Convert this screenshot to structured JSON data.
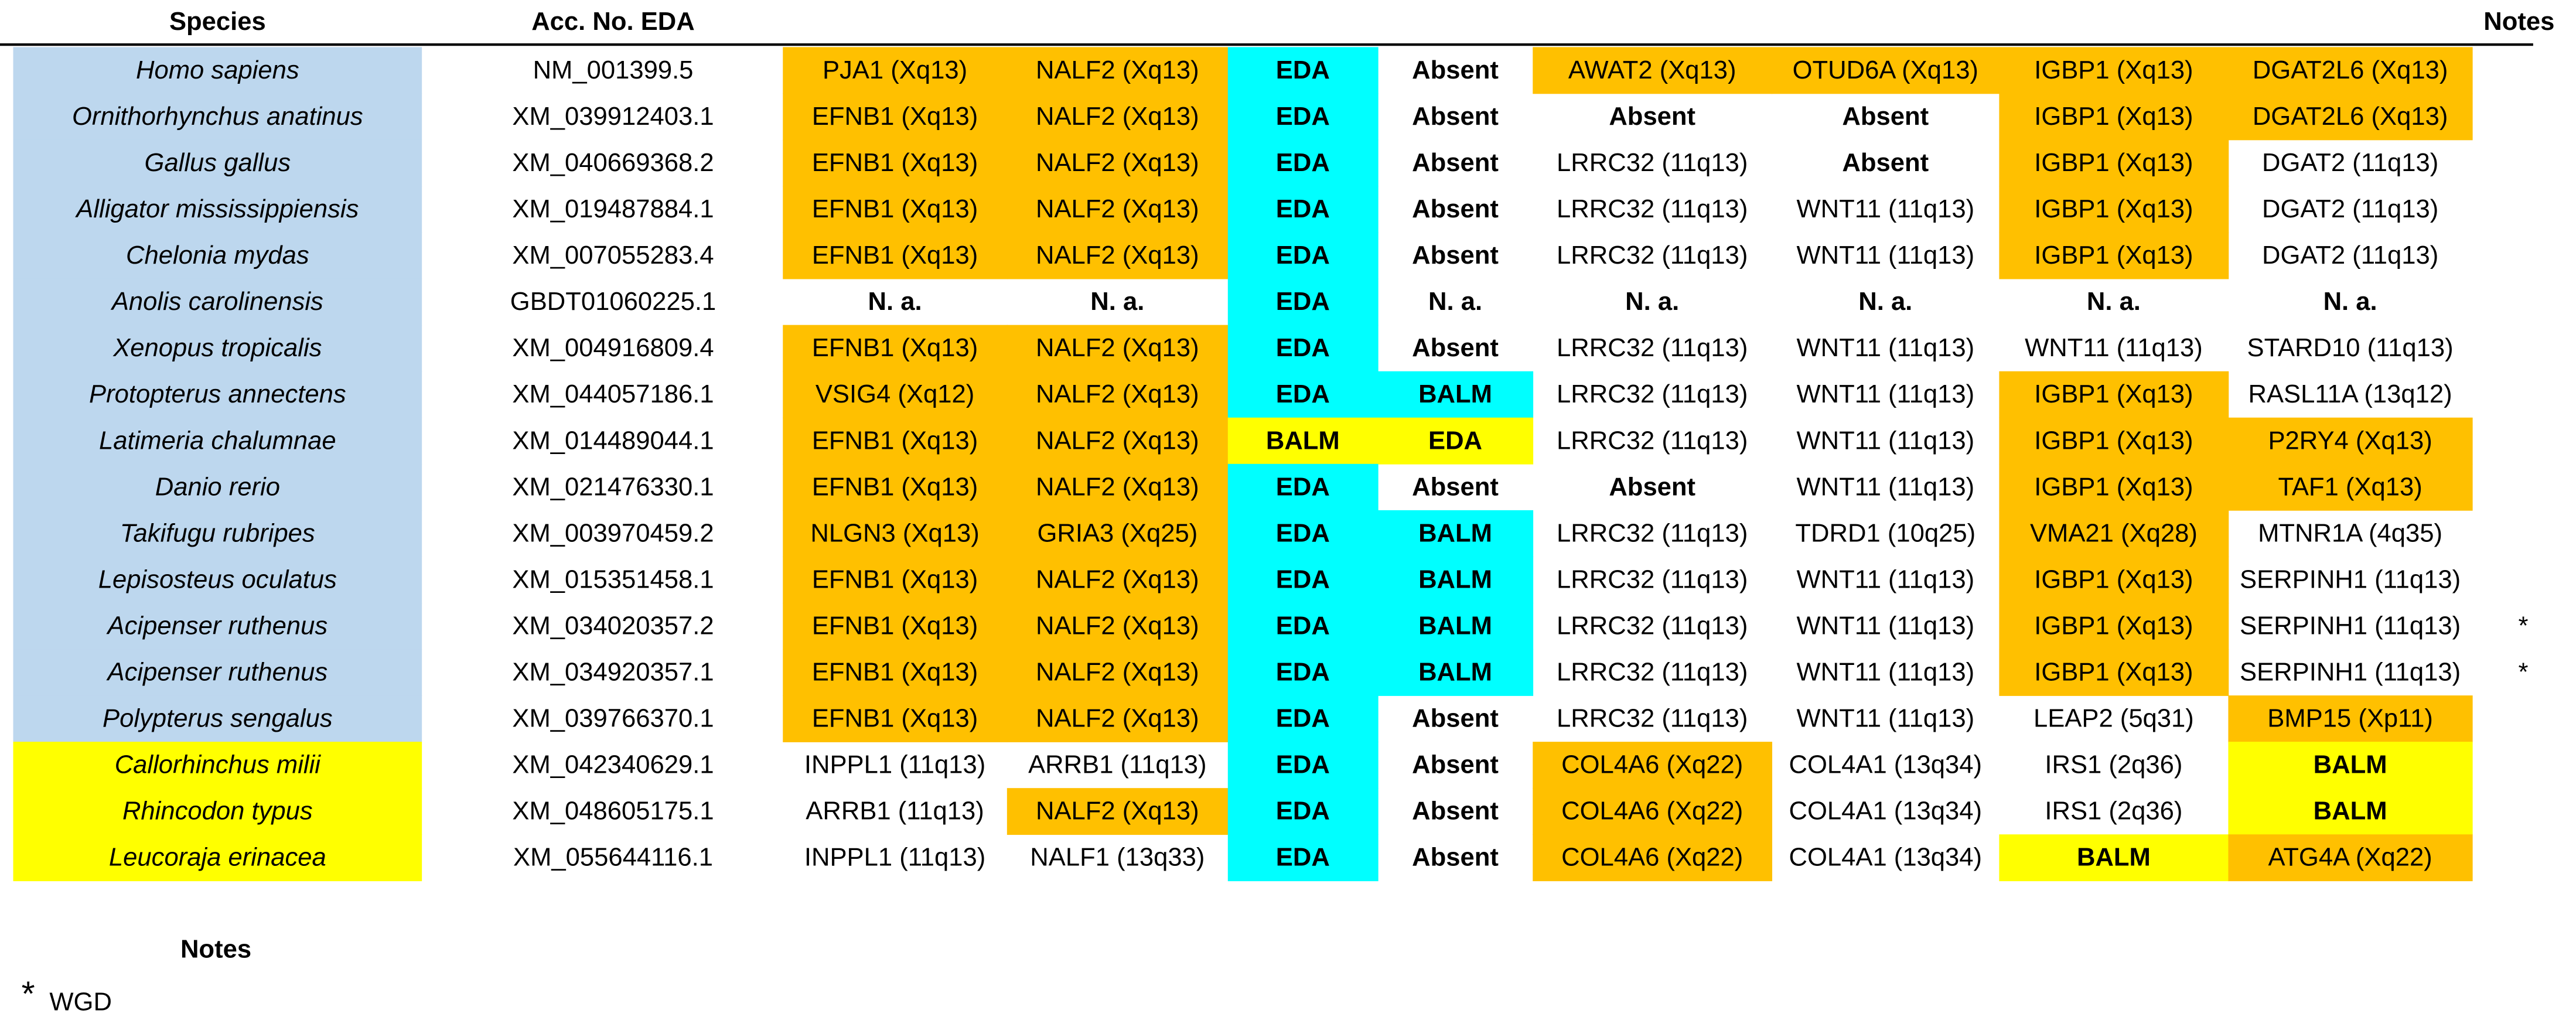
{
  "header": {
    "species": "Species",
    "accession": "Acc. No. EDA",
    "notes": "Notes"
  },
  "table": {
    "rows": [
      {
        "species": "Homo sapiens",
        "accession": "NM_001399.5",
        "group": "blue",
        "cells": [
          "PJA1 (Xq13)",
          "NALF2 (Xq13)",
          "EDA",
          "Absent",
          "AWAT2 (Xq13)",
          "OTUD6A (Xq13)",
          "IGBP1 (Xq13)",
          "DGAT2L6 (Xq13)"
        ],
        "styles": [
          "orange",
          "orange",
          "cyan",
          "red",
          "orange",
          "orange",
          "orange",
          "orange"
        ]
      },
      {
        "species": "Ornithorhynchus anatinus",
        "accession": "XM_039912403.1",
        "group": "blue",
        "cells": [
          "EFNB1 (Xq13)",
          "NALF2 (Xq13)",
          "EDA",
          "Absent",
          "Absent",
          "Absent",
          "IGBP1 (Xq13)",
          "DGAT2L6 (Xq13)"
        ],
        "styles": [
          "orange",
          "orange",
          "cyan",
          "red",
          "red",
          "red",
          "orange",
          "orange"
        ]
      },
      {
        "species": "Gallus gallus",
        "accession": "XM_040669368.2",
        "group": "blue",
        "cells": [
          "EFNB1 (Xq13)",
          "NALF2 (Xq13)",
          "EDA",
          "Absent",
          "LRRC32 (11q13)",
          "Absent",
          "IGBP1 (Xq13)",
          "DGAT2 (11q13)"
        ],
        "styles": [
          "orange",
          "orange",
          "cyan",
          "red",
          "plain",
          "red",
          "orange",
          "plain"
        ]
      },
      {
        "species": "Alligator mississippiensis",
        "accession": "XM_019487884.1",
        "group": "blue",
        "cells": [
          "EFNB1 (Xq13)",
          "NALF2 (Xq13)",
          "EDA",
          "Absent",
          "LRRC32 (11q13)",
          "WNT11 (11q13)",
          "IGBP1 (Xq13)",
          "DGAT2 (11q13)"
        ],
        "styles": [
          "orange",
          "orange",
          "cyan",
          "red",
          "plain",
          "plain",
          "orange",
          "plain"
        ]
      },
      {
        "species": "Chelonia mydas",
        "accession": "XM_007055283.4",
        "group": "blue",
        "cells": [
          "EFNB1 (Xq13)",
          "NALF2 (Xq13)",
          "EDA",
          "Absent",
          "LRRC32 (11q13)",
          "WNT11 (11q13)",
          "IGBP1 (Xq13)",
          "DGAT2 (11q13)"
        ],
        "styles": [
          "orange",
          "orange",
          "cyan",
          "red",
          "plain",
          "plain",
          "orange",
          "plain"
        ]
      },
      {
        "species": "Anolis carolinensis",
        "accession": "GBDT01060225.1",
        "group": "blue",
        "cells": [
          "N. a.",
          "N. a.",
          "EDA",
          "N. a.",
          "N. a.",
          "N. a.",
          "N. a.",
          "N. a."
        ],
        "styles": [
          "bold",
          "bold",
          "cyan",
          "bold",
          "bold",
          "bold",
          "bold",
          "bold"
        ]
      },
      {
        "species": "Xenopus tropicalis",
        "accession": "XM_004916809.4",
        "group": "blue",
        "cells": [
          "EFNB1 (Xq13)",
          "NALF2 (Xq13)",
          "EDA",
          "Absent",
          "LRRC32 (11q13)",
          "WNT11 (11q13)",
          "WNT11 (11q13)",
          "STARD10 (11q13)"
        ],
        "styles": [
          "orange",
          "orange",
          "cyan",
          "red",
          "plain",
          "plain",
          "plain",
          "plain"
        ]
      },
      {
        "species": "Protopterus annectens",
        "accession": "XM_044057186.1",
        "group": "blue",
        "cells": [
          "VSIG4 (Xq12)",
          "NALF2 (Xq13)",
          "EDA",
          "BALM",
          "LRRC32 (11q13)",
          "WNT11 (11q13)",
          "IGBP1 (Xq13)",
          "RASL11A (13q12)"
        ],
        "styles": [
          "orange",
          "orange",
          "cyan",
          "cyan",
          "plain",
          "plain",
          "orange",
          "plain"
        ]
      },
      {
        "species": "Latimeria chalumnae",
        "accession": "XM_014489044.1",
        "group": "blue",
        "cells": [
          "EFNB1 (Xq13)",
          "NALF2 (Xq13)",
          "BALM",
          "EDA",
          "LRRC32 (11q13)",
          "WNT11 (11q13)",
          "IGBP1 (Xq13)",
          "P2RY4 (Xq13)"
        ],
        "styles": [
          "orange",
          "orange",
          "yellow",
          "yellow",
          "plain",
          "plain",
          "orange",
          "orange"
        ]
      },
      {
        "species": "Danio rerio",
        "accession": "XM_021476330.1",
        "group": "blue",
        "cells": [
          "EFNB1 (Xq13)",
          "NALF2 (Xq13)",
          "EDA",
          "Absent",
          "Absent",
          "WNT11 (11q13)",
          "IGBP1 (Xq13)",
          "TAF1 (Xq13)"
        ],
        "styles": [
          "orange",
          "orange",
          "cyan",
          "red",
          "red",
          "plain",
          "orange",
          "orange"
        ]
      },
      {
        "species": "Takifugu rubripes",
        "accession": "XM_003970459.2",
        "group": "blue",
        "cells": [
          "NLGN3 (Xq13)",
          "GRIA3 (Xq25)",
          "EDA",
          "BALM",
          "LRRC32 (11q13)",
          "TDRD1 (10q25)",
          "VMA21 (Xq28)",
          "MTNR1A (4q35)"
        ],
        "styles": [
          "orange",
          "orange",
          "cyan",
          "cyan",
          "plain",
          "plain",
          "orange",
          "plain"
        ]
      },
      {
        "species": "Lepisosteus oculatus",
        "accession": "XM_015351458.1",
        "group": "blue",
        "cells": [
          "EFNB1 (Xq13)",
          "NALF2 (Xq13)",
          "EDA",
          "BALM",
          "LRRC32 (11q13)",
          "WNT11 (11q13)",
          "IGBP1 (Xq13)",
          "SERPINH1 (11q13)"
        ],
        "styles": [
          "orange",
          "orange",
          "cyan",
          "cyan",
          "plain",
          "plain",
          "orange",
          "plain"
        ]
      },
      {
        "species": "Acipenser ruthenus",
        "accession": "XM_034020357.2",
        "group": "blue",
        "cells": [
          "EFNB1 (Xq13)",
          "NALF2 (Xq13)",
          "EDA",
          "BALM",
          "LRRC32 (11q13)",
          "WNT11 (11q13)",
          "IGBP1 (Xq13)",
          "SERPINH1 (11q13)"
        ],
        "styles": [
          "orange",
          "orange",
          "cyan",
          "cyan",
          "plain",
          "plain",
          "orange",
          "plain"
        ],
        "note": "*"
      },
      {
        "species": "Acipenser ruthenus",
        "accession": "XM_034920357.1",
        "group": "blue",
        "cells": [
          "EFNB1 (Xq13)",
          "NALF2 (Xq13)",
          "EDA",
          "BALM",
          "LRRC32 (11q13)",
          "WNT11 (11q13)",
          "IGBP1 (Xq13)",
          "SERPINH1 (11q13)"
        ],
        "styles": [
          "orange",
          "orange",
          "cyan",
          "cyan",
          "plain",
          "plain",
          "orange",
          "plain"
        ],
        "note": "*"
      },
      {
        "species": "Polypterus sengalus",
        "accession": "XM_039766370.1",
        "group": "blue",
        "cells": [
          "EFNB1 (Xq13)",
          "NALF2 (Xq13)",
          "EDA",
          "Absent",
          "LRRC32 (11q13)",
          "WNT11 (11q13)",
          "LEAP2 (5q31)",
          "BMP15 (Xp11)"
        ],
        "styles": [
          "orange",
          "orange",
          "cyan",
          "red",
          "plain",
          "plain",
          "plain",
          "orange"
        ]
      },
      {
        "species": "Callorhinchus milii",
        "accession": "XM_042340629.1",
        "group": "yellow",
        "cells": [
          "INPPL1 (11q13)",
          "ARRB1 (11q13)",
          "EDA",
          "Absent",
          "COL4A6 (Xq22)",
          "COL4A1 (13q34)",
          "IRS1 (2q36)",
          "BALM"
        ],
        "styles": [
          "plain",
          "plain",
          "cyan",
          "red",
          "orange",
          "plain",
          "plain",
          "yellow"
        ]
      },
      {
        "species": "Rhincodon typus",
        "accession": "XM_048605175.1",
        "group": "yellow",
        "cells": [
          "ARRB1 (11q13)",
          "NALF2 (Xq13)",
          "EDA",
          "Absent",
          "COL4A6 (Xq22)",
          "COL4A1 (13q34)",
          "IRS1 (2q36)",
          "BALM"
        ],
        "styles": [
          "plain",
          "orange",
          "cyan",
          "red",
          "orange",
          "plain",
          "plain",
          "yellow"
        ]
      },
      {
        "species": "Leucoraja erinacea",
        "accession": "XM_055644116.1",
        "group": "yellow",
        "cells": [
          "INPPL1 (11q13)",
          "NALF1 (13q33)",
          "EDA",
          "Absent",
          "COL4A6 (Xq22)",
          "COL4A1 (13q34)",
          "BALM",
          "ATG4A (Xq22)"
        ],
        "styles": [
          "plain",
          "plain",
          "cyan",
          "red",
          "orange",
          "plain",
          "yellow",
          "orange"
        ]
      }
    ]
  },
  "footer": {
    "title": "Notes",
    "symbol": "*",
    "text": "WGD"
  }
}
